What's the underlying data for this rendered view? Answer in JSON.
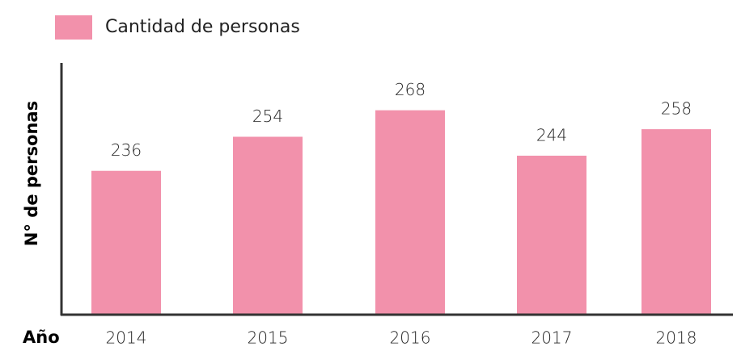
{
  "chart_data": {
    "type": "bar",
    "series": [
      {
        "name": "Cantidad de personas",
        "color": "#f291ab",
        "values": [
          236,
          254,
          268,
          244,
          258
        ]
      }
    ],
    "categories": [
      "2014",
      "2015",
      "2016",
      "2017",
      "2018"
    ],
    "x_label": "Año",
    "y_label": "N° de personas",
    "ylim": [
      160,
      293
    ]
  }
}
